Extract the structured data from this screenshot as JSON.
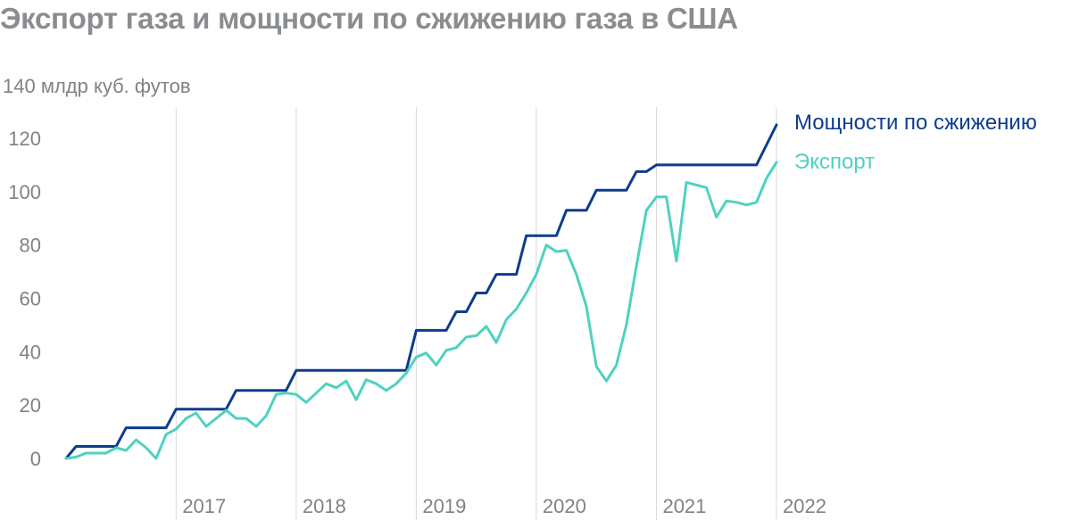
{
  "title": "Экспорт газа и мощности по сжижению газа в США",
  "chart_data": {
    "type": "line",
    "y_unit_label": "140 млдр куб. футов",
    "ylim": [
      0,
      140
    ],
    "y_ticks": [
      0,
      20,
      40,
      60,
      80,
      100,
      120
    ],
    "x_ticks": [
      "2017",
      "2018",
      "2019",
      "2020",
      "2021",
      "2022"
    ],
    "xlim": [
      "2016-02",
      "2022-01"
    ],
    "grid": "vertical lines at year boundaries",
    "legend": "right, at line ends",
    "colors": {
      "capacity": "#0d3d8c",
      "export": "#4fd1c0",
      "axis_text": "#7f8285",
      "grid": "#d9d9d9"
    },
    "series": [
      {
        "name": "Мощности по сжижению",
        "key": "capacity",
        "points": [
          [
            "2016-02",
            0
          ],
          [
            "2016-03",
            4.5
          ],
          [
            "2016-07",
            4.5
          ],
          [
            "2016-08",
            11.5
          ],
          [
            "2016-12",
            11.5
          ],
          [
            "2017-01",
            18.5
          ],
          [
            "2017-06",
            18.5
          ],
          [
            "2017-07",
            25.5
          ],
          [
            "2017-12",
            25.5
          ],
          [
            "2018-01",
            33
          ],
          [
            "2018-12",
            33
          ],
          [
            "2019-01",
            48
          ],
          [
            "2019-04",
            48
          ],
          [
            "2019-05",
            55
          ],
          [
            "2019-06",
            55
          ],
          [
            "2019-07",
            62
          ],
          [
            "2019-08",
            62
          ],
          [
            "2019-09",
            69
          ],
          [
            "2019-11",
            69
          ],
          [
            "2019-12",
            83.5
          ],
          [
            "2020-03",
            83.5
          ],
          [
            "2020-04",
            93
          ],
          [
            "2020-06",
            93
          ],
          [
            "2020-07",
            100.5
          ],
          [
            "2020-10",
            100.5
          ],
          [
            "2020-11",
            107.5
          ],
          [
            "2020-12",
            107.5
          ],
          [
            "2021-01",
            110
          ],
          [
            "2021-11",
            110
          ],
          [
            "2022-01",
            125
          ]
        ]
      },
      {
        "name": "Экспорт",
        "key": "export",
        "points": [
          [
            "2016-02",
            0
          ],
          [
            "2016-03",
            0.5
          ],
          [
            "2016-04",
            2
          ],
          [
            "2016-05",
            2
          ],
          [
            "2016-06",
            2
          ],
          [
            "2016-07",
            4
          ],
          [
            "2016-08",
            3
          ],
          [
            "2016-09",
            7
          ],
          [
            "2016-10",
            4
          ],
          [
            "2016-11",
            0
          ],
          [
            "2016-12",
            9
          ],
          [
            "2017-01",
            11
          ],
          [
            "2017-02",
            15
          ],
          [
            "2017-03",
            17
          ],
          [
            "2017-04",
            12
          ],
          [
            "2017-05",
            15
          ],
          [
            "2017-06",
            18
          ],
          [
            "2017-07",
            15
          ],
          [
            "2017-08",
            15
          ],
          [
            "2017-09",
            12
          ],
          [
            "2017-10",
            16
          ],
          [
            "2017-11",
            24
          ],
          [
            "2017-12",
            24.5
          ],
          [
            "2018-01",
            24
          ],
          [
            "2018-02",
            21
          ],
          [
            "2018-03",
            24.5
          ],
          [
            "2018-04",
            28
          ],
          [
            "2018-05",
            26.5
          ],
          [
            "2018-06",
            29
          ],
          [
            "2018-07",
            22
          ],
          [
            "2018-08",
            29.5
          ],
          [
            "2018-09",
            28
          ],
          [
            "2018-10",
            25.5
          ],
          [
            "2018-11",
            28
          ],
          [
            "2018-12",
            32
          ],
          [
            "2019-01",
            38
          ],
          [
            "2019-02",
            39.5
          ],
          [
            "2019-03",
            35
          ],
          [
            "2019-04",
            40.5
          ],
          [
            "2019-05",
            41.5
          ],
          [
            "2019-06",
            45.5
          ],
          [
            "2019-07",
            46
          ],
          [
            "2019-08",
            49.5
          ],
          [
            "2019-09",
            43.5
          ],
          [
            "2019-10",
            52
          ],
          [
            "2019-11",
            56
          ],
          [
            "2019-12",
            62
          ],
          [
            "2020-01",
            69
          ],
          [
            "2020-02",
            80
          ],
          [
            "2020-03",
            77.5
          ],
          [
            "2020-04",
            78
          ],
          [
            "2020-05",
            69
          ],
          [
            "2020-06",
            57
          ],
          [
            "2020-07",
            34.5
          ],
          [
            "2020-08",
            29
          ],
          [
            "2020-09",
            35
          ],
          [
            "2020-10",
            50
          ],
          [
            "2020-11",
            72
          ],
          [
            "2020-12",
            93
          ],
          [
            "2021-01",
            98
          ],
          [
            "2021-02",
            98
          ],
          [
            "2021-03",
            74
          ],
          [
            "2021-04",
            103.5
          ],
          [
            "2021-05",
            102.5
          ],
          [
            "2021-06",
            101.5
          ],
          [
            "2021-07",
            90.5
          ],
          [
            "2021-08",
            96.5
          ],
          [
            "2021-09",
            96
          ],
          [
            "2021-10",
            95
          ],
          [
            "2021-11",
            96
          ],
          [
            "2021-12",
            105
          ],
          [
            "2022-01",
            111
          ]
        ]
      }
    ]
  }
}
